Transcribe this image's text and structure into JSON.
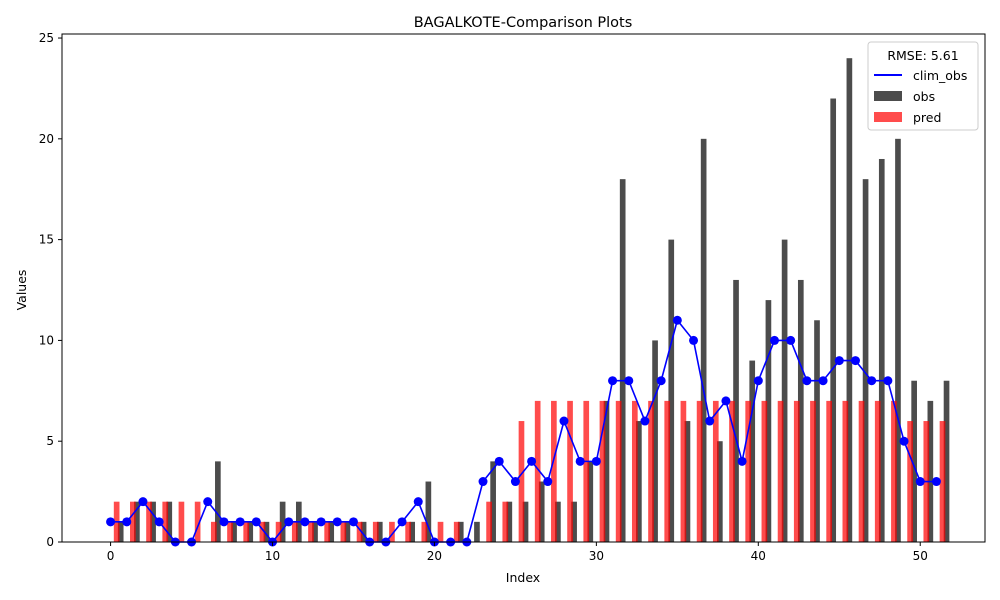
{
  "chart_data": {
    "type": "bar",
    "title": "BAGALKOTE-Comparison Plots",
    "xlabel": "Index",
    "ylabel": "Values",
    "xlim": [
      -3,
      54
    ],
    "ylim": [
      0,
      25.2
    ],
    "xticks": [
      0,
      10,
      20,
      30,
      40,
      50
    ],
    "yticks": [
      0,
      5,
      10,
      15,
      20,
      25
    ],
    "x": [
      0,
      1,
      2,
      3,
      4,
      5,
      6,
      7,
      8,
      9,
      10,
      11,
      12,
      13,
      14,
      15,
      16,
      17,
      18,
      19,
      20,
      21,
      22,
      23,
      24,
      25,
      26,
      27,
      28,
      29,
      30,
      31,
      32,
      33,
      34,
      35,
      36,
      37,
      38,
      39,
      40,
      41,
      42,
      43,
      44,
      45,
      46,
      47,
      48,
      49,
      50,
      51
    ],
    "legend": {
      "title": "RMSE: 5.61",
      "placement": "top-right"
    },
    "series": [
      {
        "name": "clim_obs",
        "kind": "line",
        "color": "#0000ff",
        "values": [
          1,
          1,
          2,
          1,
          0,
          0,
          2,
          1,
          1,
          1,
          0,
          1,
          1,
          1,
          1,
          1,
          0,
          0,
          1,
          2,
          0,
          0,
          0,
          3,
          4,
          3,
          4,
          3,
          6,
          4,
          4,
          8,
          8,
          6,
          8,
          11,
          10,
          6,
          7,
          4,
          8,
          10,
          10,
          8,
          8,
          9,
          9,
          8,
          8,
          5,
          3,
          3
        ]
      },
      {
        "name": "obs",
        "kind": "bar",
        "color": "#000000",
        "opacity": 0.7,
        "values": [
          1,
          2,
          2,
          2,
          0,
          0,
          4,
          1,
          1,
          1,
          2,
          2,
          1,
          1,
          1,
          1,
          1,
          0,
          1,
          3,
          0,
          1,
          1,
          4,
          2,
          2,
          3,
          2,
          2,
          4,
          7,
          18,
          6,
          10,
          15,
          6,
          20,
          5,
          13,
          9,
          12,
          15,
          13,
          11,
          22,
          24,
          18,
          19,
          20,
          8,
          7,
          8
        ]
      },
      {
        "name": "pred",
        "kind": "bar",
        "color": "#ff0000",
        "opacity": 0.7,
        "values": [
          2,
          2,
          2,
          2,
          2,
          2,
          1,
          1,
          1,
          1,
          1,
          1,
          1,
          1,
          1,
          1,
          1,
          1,
          1,
          1,
          1,
          1,
          0,
          2,
          2,
          6,
          7,
          7,
          7,
          7,
          7,
          7,
          7,
          7,
          7,
          7,
          7,
          7,
          7,
          7,
          7,
          7,
          7,
          7,
          7,
          7,
          7,
          7,
          7,
          6,
          6,
          6
        ]
      }
    ]
  }
}
